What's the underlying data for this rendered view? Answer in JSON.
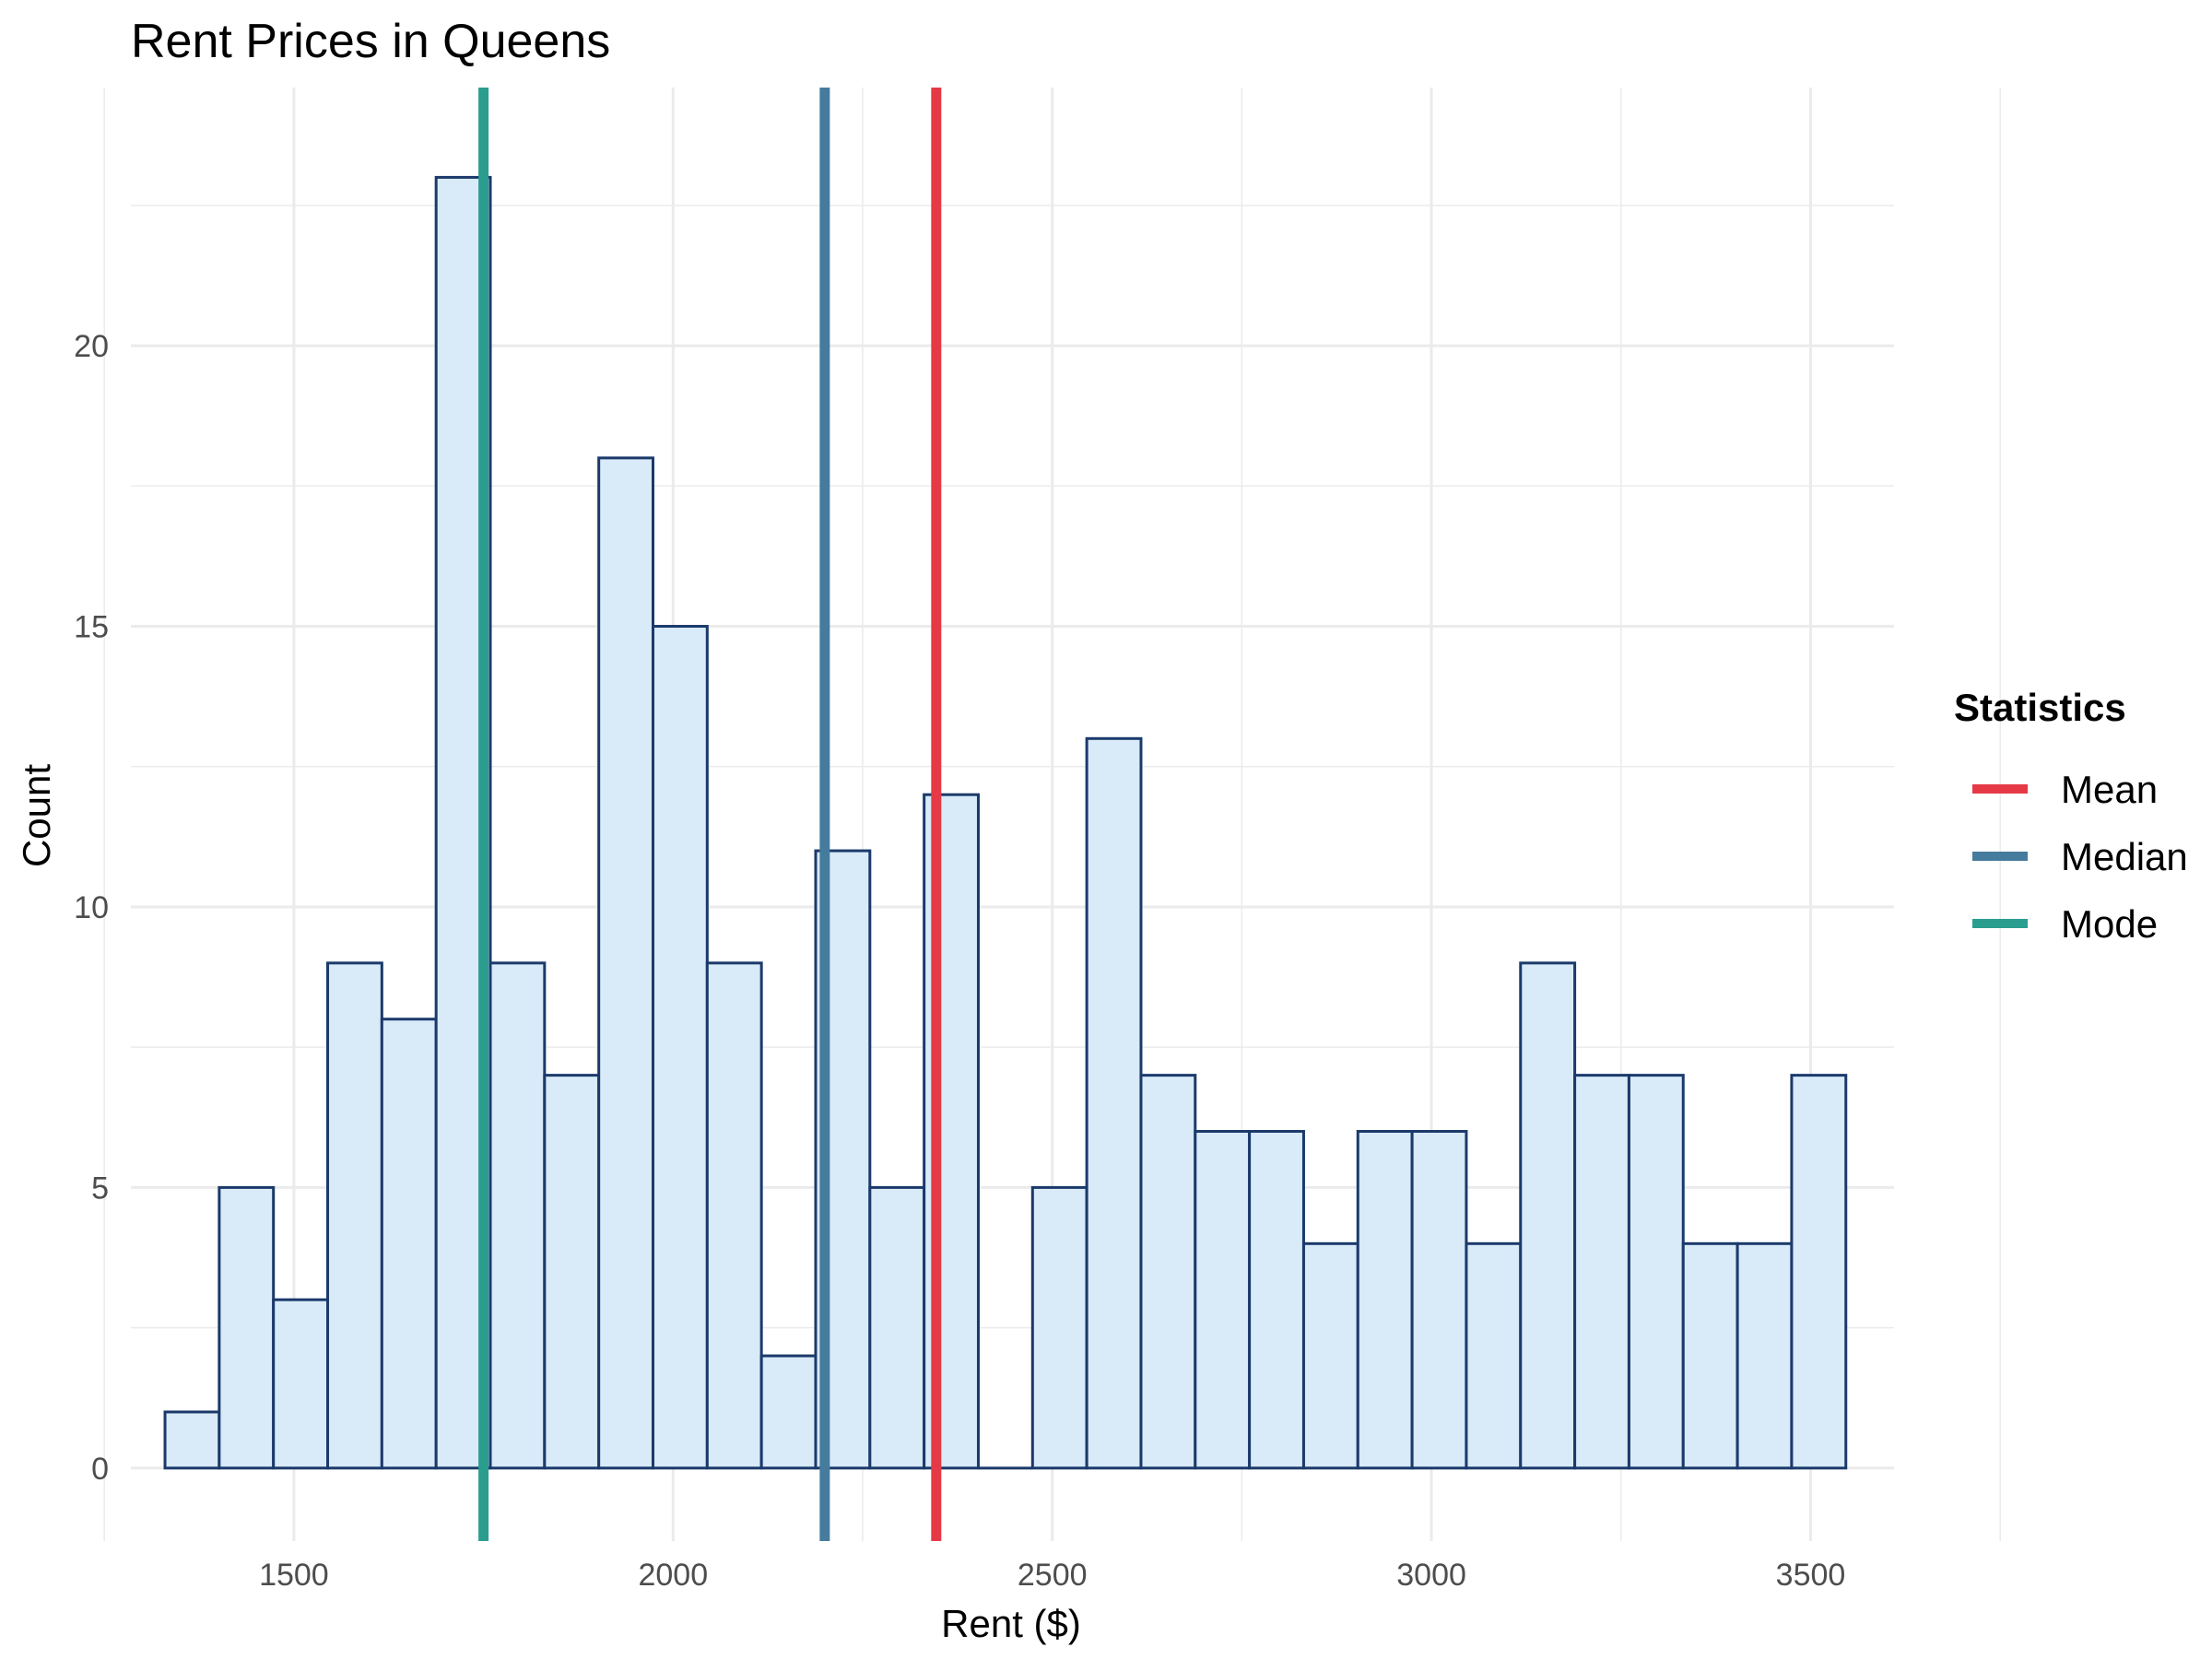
{
  "chart_data": {
    "type": "bar",
    "subtype": "histogram",
    "title": "Rent Prices in Queens",
    "xlabel": "Rent ($)",
    "ylabel": "Count",
    "xlim": [
      1285,
      3610
    ],
    "ylim": [
      -1.3,
      24.6
    ],
    "x_ticks": [
      1500,
      2000,
      2500,
      3000,
      3500
    ],
    "y_ticks": [
      0,
      5,
      10,
      15,
      20
    ],
    "grid": true,
    "bin_width": 71.5,
    "bins": [
      {
        "start": 1330,
        "end": 1401.5,
        "count": 1
      },
      {
        "start": 1401.5,
        "end": 1473,
        "count": 5
      },
      {
        "start": 1473,
        "end": 1544.5,
        "count": 3
      },
      {
        "start": 1544.5,
        "end": 1616,
        "count": 9
      },
      {
        "start": 1616,
        "end": 1687.5,
        "count": 8
      },
      {
        "start": 1687.5,
        "end": 1759,
        "count": 23
      },
      {
        "start": 1759,
        "end": 1830.5,
        "count": 9
      },
      {
        "start": 1830.5,
        "end": 1902,
        "count": 7
      },
      {
        "start": 1902,
        "end": 1973.5,
        "count": 18
      },
      {
        "start": 1973.5,
        "end": 2045,
        "count": 15
      },
      {
        "start": 2045,
        "end": 2116.5,
        "count": 9
      },
      {
        "start": 2116.5,
        "end": 2188,
        "count": 2
      },
      {
        "start": 2188,
        "end": 2259.5,
        "count": 11
      },
      {
        "start": 2259.5,
        "end": 2331,
        "count": 5
      },
      {
        "start": 2331,
        "end": 2402.5,
        "count": 12
      },
      {
        "start": 2402.5,
        "end": 2474,
        "count": 0
      },
      {
        "start": 2474,
        "end": 2545.5,
        "count": 5
      },
      {
        "start": 2545.5,
        "end": 2617,
        "count": 13
      },
      {
        "start": 2617,
        "end": 2688.5,
        "count": 7
      },
      {
        "start": 2688.5,
        "end": 2760,
        "count": 6
      },
      {
        "start": 2760,
        "end": 2831.5,
        "count": 6
      },
      {
        "start": 2831.5,
        "end": 2903,
        "count": 4
      },
      {
        "start": 2903,
        "end": 2974.5,
        "count": 6
      },
      {
        "start": 2974.5,
        "end": 3046,
        "count": 6
      },
      {
        "start": 3046,
        "end": 3117.5,
        "count": 4
      },
      {
        "start": 3117.5,
        "end": 3189,
        "count": 9
      },
      {
        "start": 3189,
        "end": 3260.5,
        "count": 7
      },
      {
        "start": 3260.5,
        "end": 3332,
        "count": 7
      },
      {
        "start": 3332,
        "end": 3403.5,
        "count": 4
      },
      {
        "start": 3403.5,
        "end": 3475,
        "count": 4
      },
      {
        "start": 3475,
        "end": 3546.5,
        "count": 7
      }
    ],
    "bar_fill": "#d9eaf8",
    "bar_outline": "#1b3a6b",
    "reference_lines": [
      {
        "name": "Mean",
        "x": 2347,
        "color": "#e63946"
      },
      {
        "name": "Median",
        "x": 2200,
        "color": "#457b9d"
      },
      {
        "name": "Mode",
        "x": 1750,
        "color": "#2a9d8f"
      }
    ],
    "legend": {
      "title": "Statistics",
      "placement": "right",
      "entries": [
        "Mean",
        "Median",
        "Mode"
      ]
    }
  }
}
